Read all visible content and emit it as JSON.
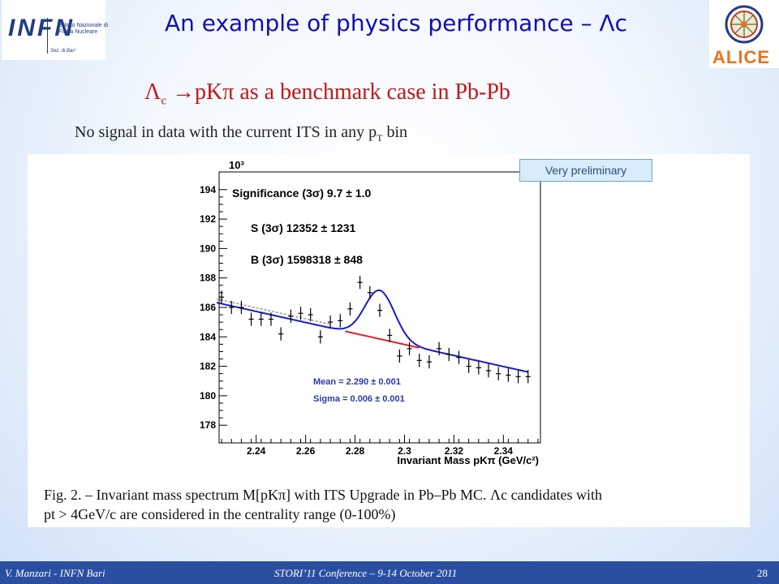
{
  "header": {
    "title": "An example of physics performance – Λc",
    "logo_left": {
      "text": "INFN",
      "subtitle": "Istituto Nazionale di Fisica Nucleare",
      "section": "Sez. di Bari"
    },
    "logo_right": {
      "text": "ALICE"
    }
  },
  "subtitle": {
    "lambda": "Λ",
    "sub": "c",
    "arrow": "→",
    "rest": "pKπ as a benchmark case in Pb-Pb"
  },
  "note": {
    "pre": "No signal in data with the current ITS in any p",
    "sub": "T",
    "post": " bin"
  },
  "badge": "Very preliminary",
  "caption": {
    "line1": "Fig. 2. – Invariant mass spectrum M[pKπ] with ITS Upgrade in Pb–Pb MC. Λc candidates with",
    "line2": "pt > 4GeV/c are considered in the centrality range (0-100%)"
  },
  "footer": {
    "left": "V. Manzari - INFN Bari",
    "center": "STORI’11 Conference – 9-14 October 2011",
    "right": "28"
  },
  "chart_data": {
    "type": "scatter",
    "xlabel": "Invariant Mass pKπ (GeV/c²)",
    "ylabel": "",
    "y_multiplier": "10³",
    "xlim": [
      2.225,
      2.355
    ],
    "ylim": [
      176.8,
      195.2
    ],
    "xticks": [
      2.24,
      2.26,
      2.28,
      2.3,
      2.32,
      2.34
    ],
    "xtick_labels": [
      "2.24",
      "2.26",
      "2.28",
      "2.3",
      "2.32",
      "2.34"
    ],
    "yticks": [
      178,
      180,
      182,
      184,
      186,
      188,
      190,
      192,
      194
    ],
    "ytick_labels": [
      "178",
      "180",
      "182",
      "184",
      "186",
      "188",
      "190",
      "192",
      "194"
    ],
    "grid": false,
    "annotations": [
      "Significance (3σ) 9.7 ± 1.0",
      "S (3σ) 12352 ± 1231",
      "B (3σ) 1598318 ± 848"
    ],
    "fit_results": [
      "Mean = 2.290 ± 0.001",
      "Sigma = 0.006 ± 0.001"
    ],
    "x": [
      2.226,
      2.23,
      2.234,
      2.238,
      2.242,
      2.246,
      2.25,
      2.254,
      2.258,
      2.262,
      2.266,
      2.27,
      2.274,
      2.278,
      2.282,
      2.286,
      2.29,
      2.294,
      2.298,
      2.302,
      2.306,
      2.31,
      2.314,
      2.318,
      2.322,
      2.326,
      2.33,
      2.334,
      2.338,
      2.342,
      2.346,
      2.35
    ],
    "y": [
      186.7,
      186.0,
      186.0,
      185.2,
      185.2,
      185.2,
      184.2,
      185.4,
      185.6,
      185.5,
      184.0,
      185.0,
      185.1,
      185.9,
      187.7,
      187.0,
      185.8,
      184.1,
      182.7,
      183.2,
      182.4,
      182.3,
      183.2,
      182.8,
      182.6,
      182.0,
      181.9,
      181.7,
      181.5,
      181.4,
      181.3,
      181.3
    ],
    "bin_width": 0.002,
    "series": [
      {
        "name": "",
        "kind": "fit_total",
        "color": "#1a1acc"
      },
      {
        "name": "",
        "kind": "fit_background",
        "color": "#e02020"
      },
      {
        "name": "",
        "kind": "background_reference",
        "color": "#999999"
      }
    ],
    "fit_model": {
      "b0": 186.1,
      "b_slope": -37.4,
      "x0": 2.23,
      "amplitude": 3.3,
      "mean": 2.29,
      "sigma": 0.006,
      "bkg_curve_xrange": [
        2.276,
        2.306
      ]
    }
  }
}
